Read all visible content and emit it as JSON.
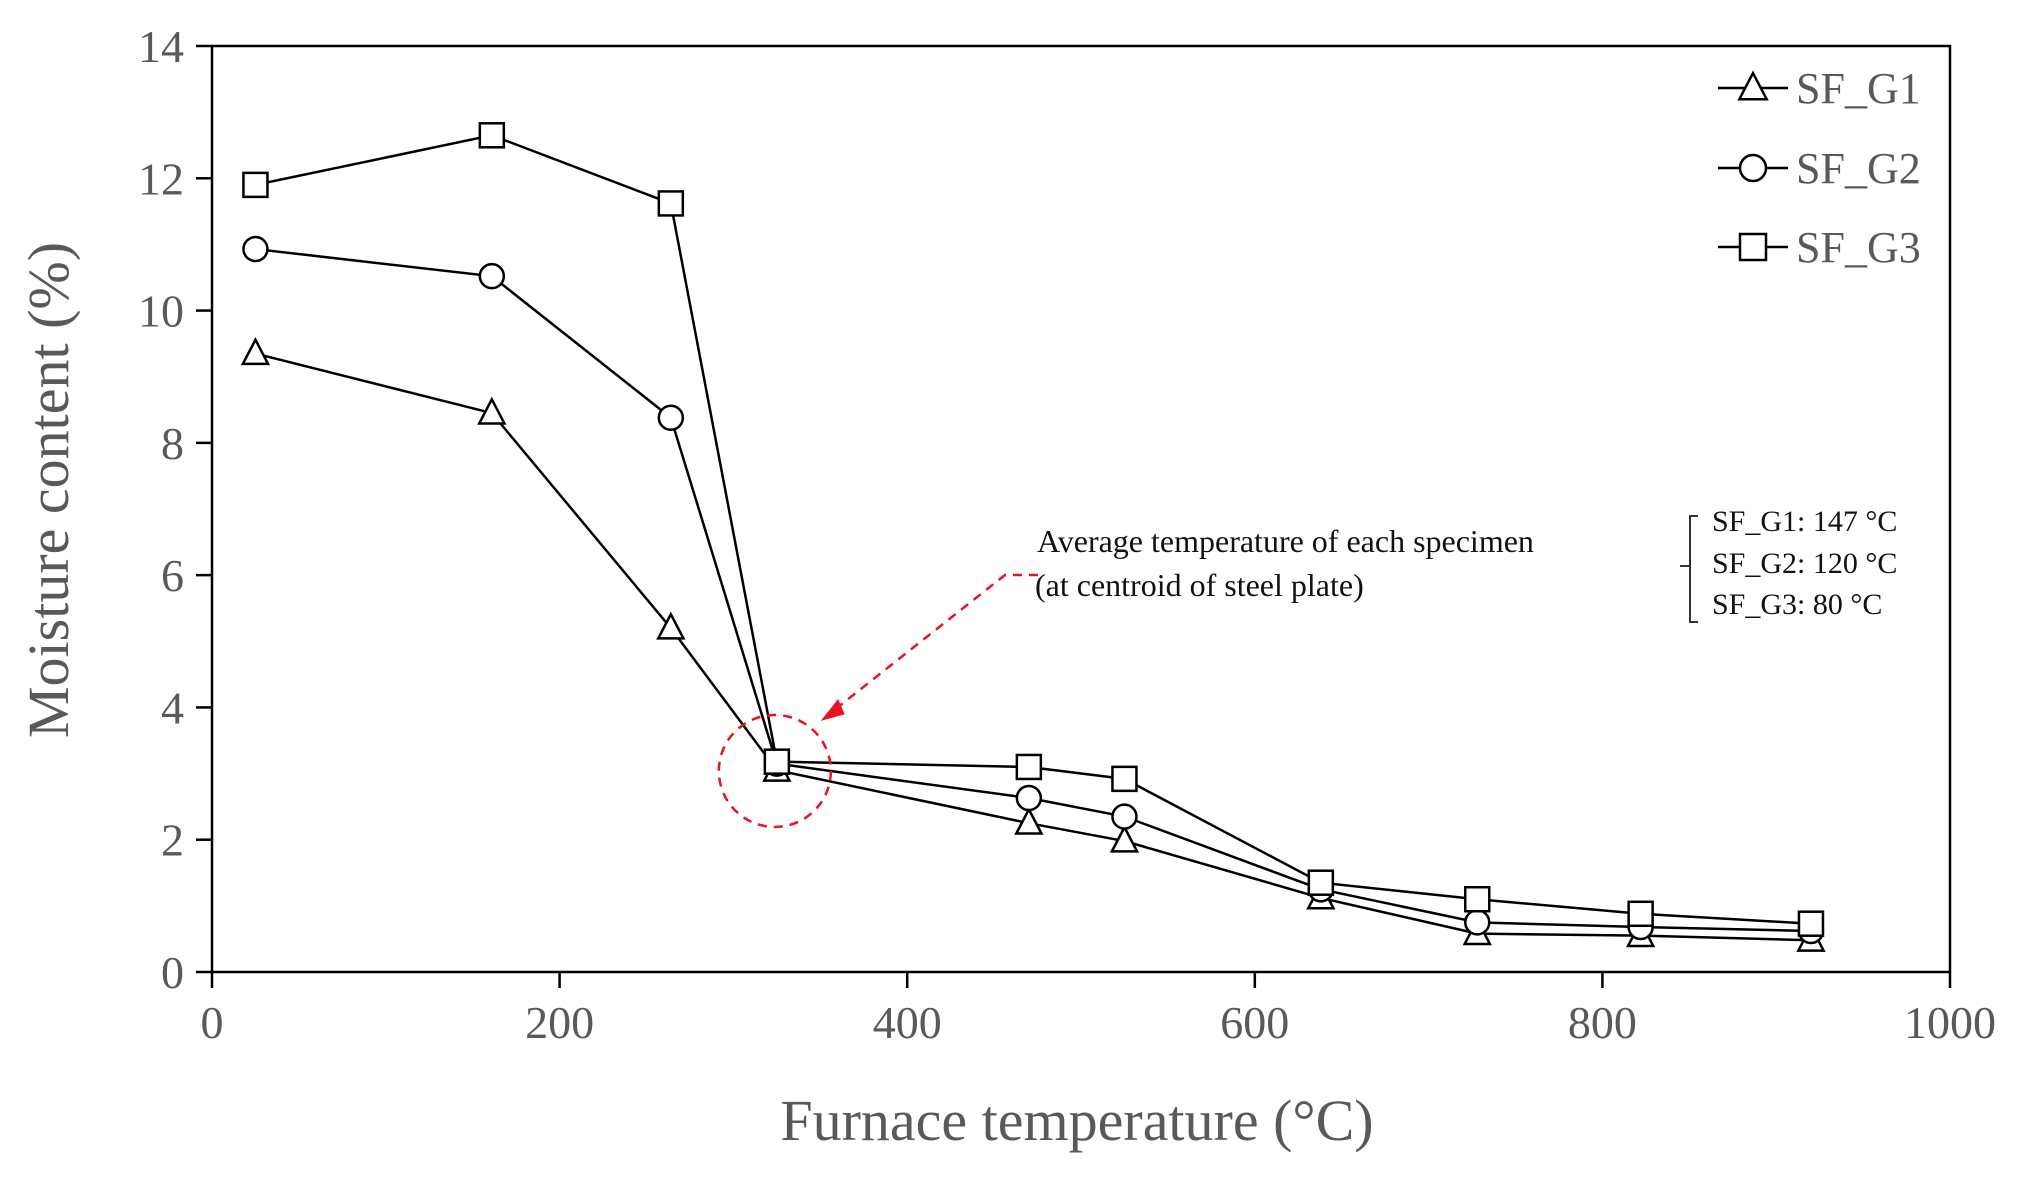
{
  "chart_data": {
    "type": "line",
    "title": "",
    "xlabel": "Furnace temperature (°C)",
    "ylabel": "Moisture content (%)",
    "xlim": [
      0,
      1000
    ],
    "ylim": [
      0,
      14
    ],
    "xticks": [
      0,
      200,
      400,
      600,
      800,
      1000
    ],
    "yticks": [
      0,
      2,
      4,
      6,
      8,
      10,
      12,
      14
    ],
    "grid": false,
    "legend_position": "top-right",
    "series": [
      {
        "name": "SF_G1",
        "marker": "triangle",
        "x": [
          25,
          161,
          264,
          325,
          470,
          525,
          638,
          728,
          822,
          920
        ],
        "y": [
          9.35,
          8.45,
          5.2,
          3.05,
          2.25,
          1.98,
          1.12,
          0.58,
          0.55,
          0.48
        ]
      },
      {
        "name": "SF_G2",
        "marker": "circle",
        "x": [
          25,
          161,
          264,
          325,
          470,
          525,
          638,
          728,
          822,
          920
        ],
        "y": [
          10.93,
          10.52,
          8.38,
          3.15,
          2.63,
          2.35,
          1.25,
          0.75,
          0.68,
          0.62
        ]
      },
      {
        "name": "SF_G3",
        "marker": "square",
        "x": [
          25,
          161,
          264,
          325,
          470,
          525,
          638,
          728,
          822,
          920
        ],
        "y": [
          11.9,
          12.65,
          11.62,
          3.18,
          3.1,
          2.92,
          1.35,
          1.1,
          0.88,
          0.73
        ]
      }
    ],
    "annotation": {
      "line1": "Average temperature of each specimen",
      "line2": "(at centroid of steel plate)",
      "items": [
        "SF_G1: 147 °C",
        "SF_G2: 120 °C",
        "SF_G3: 80 °C"
      ],
      "highlight_x": 325,
      "highlight_y": 3.1,
      "color": "#e8141c"
    }
  }
}
